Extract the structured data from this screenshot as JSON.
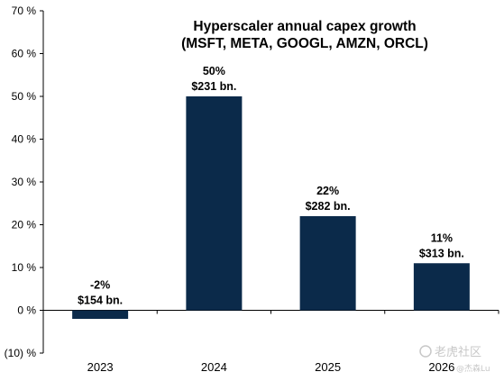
{
  "chart_data": {
    "type": "bar",
    "title": "Hyperscaler annual capex growth",
    "subtitle": "(MSFT, META, GOOGL, AMZN, ORCL)",
    "categories": [
      "2023",
      "2024",
      "2025",
      "2026"
    ],
    "values": [
      -2,
      50,
      22,
      11
    ],
    "value_labels": [
      "-2%",
      "50%",
      "22%",
      "11%"
    ],
    "amount_labels": [
      "$154 bn.",
      "$231 bn.",
      "$282 bn.",
      "$313 bn."
    ],
    "ylim": [
      -10,
      70
    ],
    "yticks": [
      -10,
      0,
      10,
      20,
      30,
      40,
      50,
      60,
      70
    ],
    "ytick_labels": [
      "(10) %",
      "0 %",
      "10 %",
      "20 %",
      "30 %",
      "40 %",
      "50 %",
      "60 %",
      "70 %"
    ],
    "xlabel": "",
    "ylabel": "",
    "grid": false,
    "bar_color": "#0b2a4a"
  },
  "watermark": {
    "line1": "老虎社区",
    "line2": "@杰森Lu"
  }
}
